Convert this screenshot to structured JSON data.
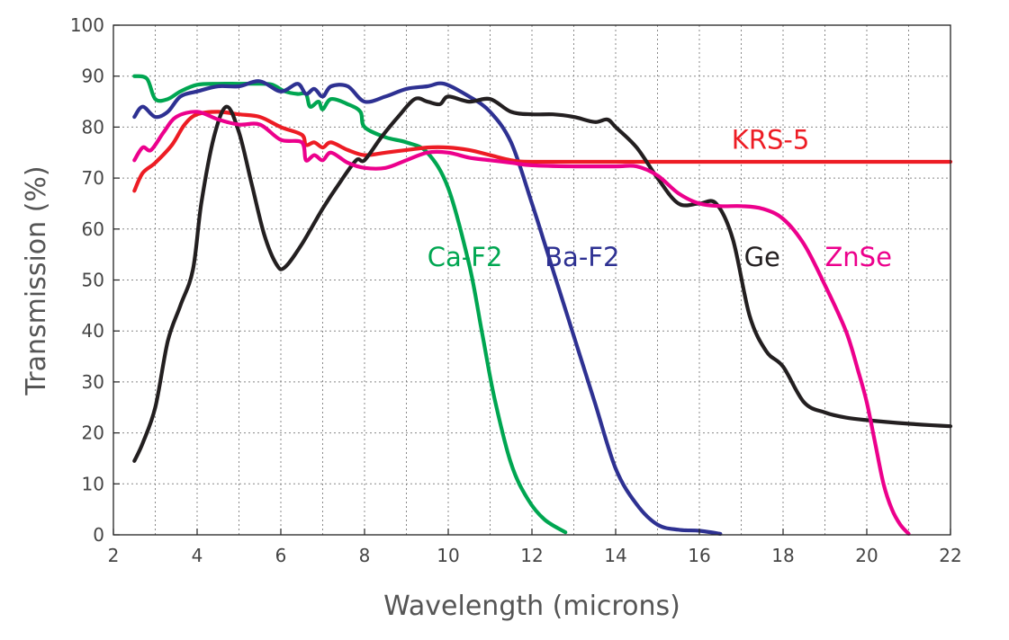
{
  "chart_data": {
    "type": "line",
    "title": "",
    "xlabel": "Wavelength (microns)",
    "ylabel": "Transmission (%)",
    "xlim": [
      2,
      22
    ],
    "ylim": [
      0,
      100
    ],
    "xticks": [
      2,
      4,
      6,
      8,
      10,
      12,
      14,
      16,
      18,
      20,
      22
    ],
    "yticks": [
      0,
      10,
      20,
      30,
      40,
      50,
      60,
      70,
      80,
      90,
      100
    ],
    "x_minor_step": 1,
    "grid": true,
    "legend": "inline labels",
    "series": [
      {
        "name": "Ca-F2",
        "color": "#00a651",
        "points": [
          [
            2.5,
            90
          ],
          [
            2.8,
            89.5
          ],
          [
            3.0,
            85.5
          ],
          [
            3.3,
            85.5
          ],
          [
            3.6,
            87
          ],
          [
            4,
            88.3
          ],
          [
            4.5,
            88.5
          ],
          [
            5,
            88.5
          ],
          [
            5.5,
            88.5
          ],
          [
            5.8,
            88.3
          ],
          [
            6.1,
            87
          ],
          [
            6.4,
            86.5
          ],
          [
            6.6,
            86.5
          ],
          [
            6.7,
            84
          ],
          [
            6.9,
            85
          ],
          [
            7.0,
            83.5
          ],
          [
            7.2,
            85.5
          ],
          [
            7.6,
            84.5
          ],
          [
            7.9,
            83
          ],
          [
            8.0,
            80
          ],
          [
            8.5,
            78
          ],
          [
            9.0,
            77
          ],
          [
            9.5,
            75
          ],
          [
            10.0,
            68
          ],
          [
            10.5,
            53
          ],
          [
            10.8,
            40
          ],
          [
            11.1,
            27
          ],
          [
            11.5,
            14
          ],
          [
            11.9,
            7
          ],
          [
            12.3,
            3
          ],
          [
            12.8,
            0.5
          ]
        ]
      },
      {
        "name": "Ba-F2",
        "color": "#2e3192",
        "points": [
          [
            2.5,
            82
          ],
          [
            2.7,
            84
          ],
          [
            3.0,
            82
          ],
          [
            3.3,
            83
          ],
          [
            3.6,
            86
          ],
          [
            4,
            87
          ],
          [
            4.5,
            88
          ],
          [
            5,
            88
          ],
          [
            5.5,
            89
          ],
          [
            6.0,
            87
          ],
          [
            6.4,
            88.5
          ],
          [
            6.6,
            86.5
          ],
          [
            6.8,
            87.5
          ],
          [
            7.0,
            86
          ],
          [
            7.2,
            88
          ],
          [
            7.6,
            88
          ],
          [
            8.0,
            85
          ],
          [
            8.5,
            86
          ],
          [
            9.0,
            87.5
          ],
          [
            9.5,
            88
          ],
          [
            9.9,
            88.5
          ],
          [
            10.5,
            86
          ],
          [
            11.0,
            83
          ],
          [
            11.5,
            77
          ],
          [
            12.0,
            65
          ],
          [
            12.5,
            52
          ],
          [
            13.0,
            39
          ],
          [
            13.5,
            26
          ],
          [
            14.0,
            13
          ],
          [
            14.5,
            6
          ],
          [
            15.0,
            2
          ],
          [
            15.5,
            1
          ],
          [
            16.0,
            0.8
          ],
          [
            16.5,
            0.2
          ]
        ]
      },
      {
        "name": "KRS-5",
        "color": "#ed1c24",
        "points": [
          [
            2.5,
            67.5
          ],
          [
            2.7,
            71
          ],
          [
            3.0,
            73
          ],
          [
            3.4,
            76.5
          ],
          [
            3.7,
            80.5
          ],
          [
            4.0,
            82.5
          ],
          [
            4.5,
            83
          ],
          [
            5.0,
            82.5
          ],
          [
            5.5,
            82
          ],
          [
            6.0,
            80
          ],
          [
            6.5,
            78.5
          ],
          [
            6.6,
            76.5
          ],
          [
            6.8,
            77
          ],
          [
            7.0,
            76
          ],
          [
            7.2,
            77
          ],
          [
            7.6,
            75.5
          ],
          [
            8.0,
            74.5
          ],
          [
            8.5,
            75
          ],
          [
            9.0,
            75.5
          ],
          [
            9.5,
            76
          ],
          [
            10.0,
            76
          ],
          [
            10.5,
            75.5
          ],
          [
            11.0,
            74.5
          ],
          [
            11.5,
            73.5
          ],
          [
            12.0,
            73.2
          ],
          [
            14.0,
            73.2
          ],
          [
            18.0,
            73.2
          ],
          [
            22.0,
            73.2
          ]
        ]
      },
      {
        "name": "Ge",
        "color": "#231f20",
        "points": [
          [
            2.5,
            14.5
          ],
          [
            2.7,
            18
          ],
          [
            3.0,
            25
          ],
          [
            3.3,
            38
          ],
          [
            3.6,
            45
          ],
          [
            3.9,
            52
          ],
          [
            4.1,
            65
          ],
          [
            4.4,
            78
          ],
          [
            4.7,
            84
          ],
          [
            5.0,
            79
          ],
          [
            5.3,
            69
          ],
          [
            5.6,
            59
          ],
          [
            5.9,
            53
          ],
          [
            6.1,
            52.5
          ],
          [
            6.5,
            57
          ],
          [
            7.0,
            64
          ],
          [
            7.4,
            69
          ],
          [
            7.8,
            73.5
          ],
          [
            8.0,
            73.5
          ],
          [
            8.4,
            78
          ],
          [
            8.8,
            82
          ],
          [
            9.2,
            85.5
          ],
          [
            9.5,
            85
          ],
          [
            9.8,
            84.5
          ],
          [
            10.0,
            86
          ],
          [
            10.5,
            85
          ],
          [
            11.0,
            85.5
          ],
          [
            11.5,
            83
          ],
          [
            12.0,
            82.5
          ],
          [
            12.5,
            82.5
          ],
          [
            13.0,
            82
          ],
          [
            13.5,
            81
          ],
          [
            13.8,
            81.5
          ],
          [
            14.0,
            80
          ],
          [
            14.5,
            76
          ],
          [
            15.0,
            70
          ],
          [
            15.5,
            65
          ],
          [
            16.0,
            65
          ],
          [
            16.4,
            65
          ],
          [
            16.8,
            58
          ],
          [
            17.2,
            43
          ],
          [
            17.6,
            36
          ],
          [
            18.0,
            33
          ],
          [
            18.5,
            26
          ],
          [
            19.0,
            24
          ],
          [
            19.5,
            23
          ],
          [
            20.0,
            22.5
          ],
          [
            21.0,
            21.8
          ],
          [
            22.0,
            21.3
          ]
        ]
      },
      {
        "name": "ZnSe",
        "color": "#ec008c",
        "points": [
          [
            2.5,
            73.5
          ],
          [
            2.7,
            76
          ],
          [
            2.9,
            75.5
          ],
          [
            3.2,
            79
          ],
          [
            3.5,
            82
          ],
          [
            4.0,
            83
          ],
          [
            4.5,
            81.5
          ],
          [
            5.0,
            80.5
          ],
          [
            5.5,
            80.5
          ],
          [
            6.0,
            77.5
          ],
          [
            6.5,
            77
          ],
          [
            6.6,
            73.5
          ],
          [
            6.8,
            74.5
          ],
          [
            7.0,
            73.5
          ],
          [
            7.2,
            75
          ],
          [
            7.6,
            73
          ],
          [
            8.0,
            72
          ],
          [
            8.5,
            72
          ],
          [
            9.0,
            73.5
          ],
          [
            9.5,
            75
          ],
          [
            10.0,
            75
          ],
          [
            10.5,
            74
          ],
          [
            11.0,
            73.5
          ],
          [
            11.5,
            73
          ],
          [
            12.0,
            72.5
          ],
          [
            13.0,
            72.3
          ],
          [
            14.0,
            72.3
          ],
          [
            14.5,
            72.3
          ],
          [
            15.0,
            70.5
          ],
          [
            15.5,
            67
          ],
          [
            16.0,
            65
          ],
          [
            16.5,
            64.5
          ],
          [
            17.0,
            64.5
          ],
          [
            17.5,
            64
          ],
          [
            18.0,
            62
          ],
          [
            18.5,
            57
          ],
          [
            19.0,
            49
          ],
          [
            19.5,
            40
          ],
          [
            19.8,
            32
          ],
          [
            20.0,
            26
          ],
          [
            20.2,
            18
          ],
          [
            20.4,
            10
          ],
          [
            20.6,
            5
          ],
          [
            20.8,
            2
          ],
          [
            21.0,
            0.2
          ]
        ]
      }
    ],
    "annotations": [
      {
        "text": "KRS-5",
        "color": "#ed1c24",
        "x": 17.7,
        "y": 77.5
      },
      {
        "text": "Ca-F2",
        "color": "#00a651",
        "x": 10.4,
        "y": 54.5
      },
      {
        "text": "Ba-F2",
        "color": "#2e3192",
        "x": 13.2,
        "y": 54.5
      },
      {
        "text": "Ge",
        "color": "#231f20",
        "x": 17.5,
        "y": 54.5
      },
      {
        "text": "ZnSe",
        "color": "#ec008c",
        "x": 19.8,
        "y": 54.5
      }
    ]
  }
}
